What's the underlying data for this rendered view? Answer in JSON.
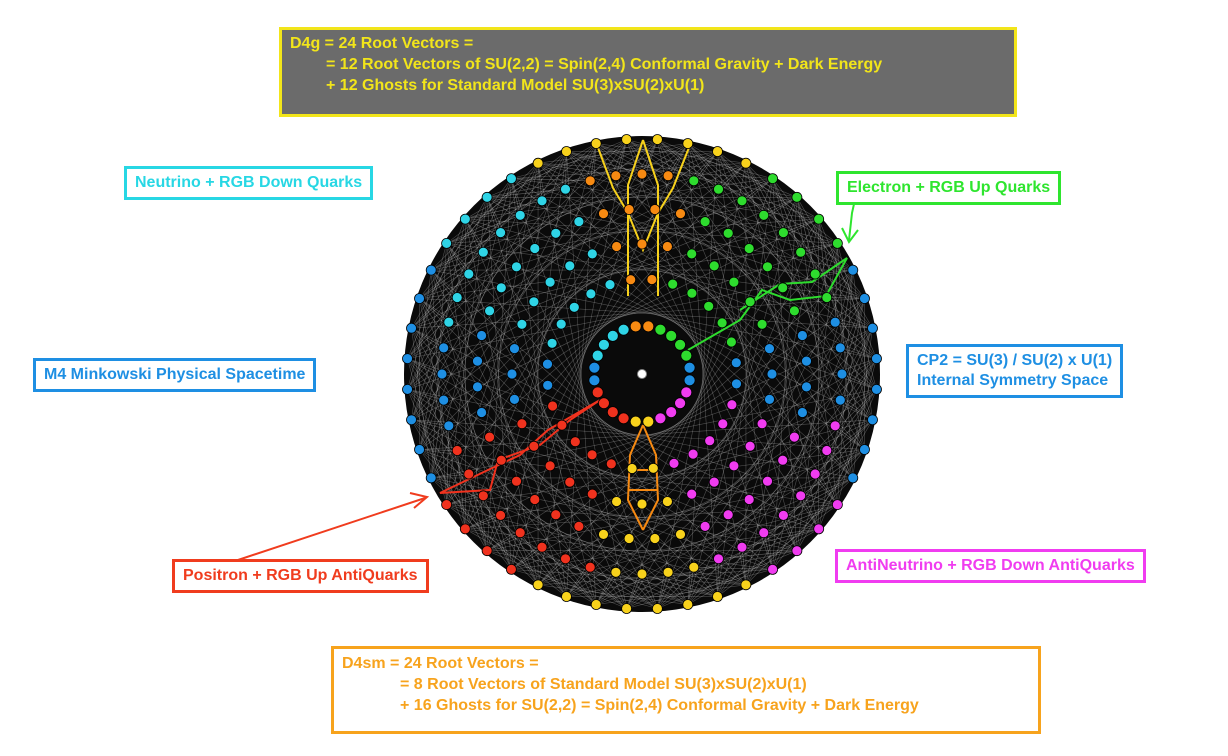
{
  "top_box": {
    "line1": "D4g = 24 Root Vectors =",
    "line2": "= 12 Root Vectors of SU(2,2) = Spin(2,4) Conformal Gravity + Dark Energy",
    "line3": "+ 12 Ghosts for Standard Model SU(3)xSU(2)xU(1)"
  },
  "bottom_box": {
    "line1": "D4sm = 24 Root Vectors =",
    "line2": "= 8 Root Vectors of Standard Model SU(3)xSU(2)xU(1)",
    "line3": "+ 16 Ghosts for SU(2,2) = Spin(2,4) Conformal Gravity + Dark Energy"
  },
  "labels": {
    "neutrino": "Neutrino + RGB Down Quarks",
    "electron": "Electron + RGB Up Quarks",
    "m4": "M4 Minkowski Physical Spacetime",
    "cp2_line1": "CP2 = SU(3) / SU(2) x U(1)",
    "cp2_line2": "Internal Symmetry Space",
    "positron": "Positron + RGB Up AntiQuarks",
    "antineutrino": "AntiNeutrino + RGB Down AntiQuarks"
  },
  "colors": {
    "yellow": "#f8d21c",
    "orange": "#f78a12",
    "cyan": "#2fd4e6",
    "green": "#2edc2e",
    "blue": "#1e8fe3",
    "magenta": "#f03cf0",
    "red": "#f0321e",
    "background_disc": "#0a0a0a"
  }
}
